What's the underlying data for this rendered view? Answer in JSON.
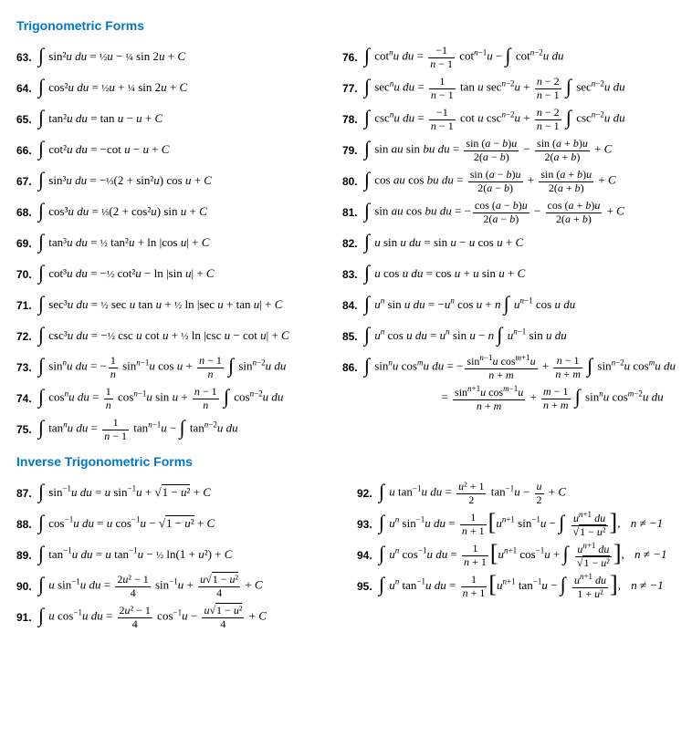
{
  "section1": {
    "title": "Trigonometric Forms",
    "color": "#0077c8",
    "left": [
      {
        "n": "63.",
        "f": "∫ sin²<i>u du</i> = <span class='sfrac'>½</span><i>u</i> − <span class='sfrac'>¼</span> sin 2<i>u</i> + <i>C</i>"
      },
      {
        "n": "64.",
        "f": "∫ cos²<i>u du</i> = <span class='sfrac'>½</span><i>u</i> + <span class='sfrac'>¼</span> sin 2<i>u</i> + <i>C</i>"
      },
      {
        "n": "65.",
        "f": "∫ tan²<i>u du</i> = tan <i>u</i> − <i>u</i> + <i>C</i>"
      },
      {
        "n": "66.",
        "f": "∫ cot²<i>u du</i> = −cot <i>u</i> − <i>u</i> + <i>C</i>"
      },
      {
        "n": "67.",
        "f": "∫ sin³<i>u du</i> = −<span class='sfrac'>⅓</span>(2 + sin²<i>u</i>) cos <i>u</i> + <i>C</i>"
      },
      {
        "n": "68.",
        "f": "∫ cos³<i>u du</i> = <span class='sfrac'>⅓</span>(2 + cos²<i>u</i>) sin <i>u</i> + <i>C</i>"
      },
      {
        "n": "69.",
        "f": "∫ tan³<i>u du</i> = <span class='sfrac'>½</span> tan²<i>u</i> + ln |cos <i>u</i>| + <i>C</i>"
      },
      {
        "n": "70.",
        "f": "∫ cot³<i>u du</i> = −<span class='sfrac'>½</span> cot²<i>u</i> − ln |sin <i>u</i>| + <i>C</i>"
      },
      {
        "n": "71.",
        "f": "∫ sec³<i>u du</i> = <span class='sfrac'>½</span> sec <i>u</i> tan <i>u</i> + <span class='sfrac'>½</span> ln |sec <i>u</i> + tan <i>u</i>| + <i>C</i>"
      },
      {
        "n": "72.",
        "f": "∫ csc³<i>u du</i> = −<span class='sfrac'>½</span> csc <i>u</i> cot <i>u</i> + <span class='sfrac'>½</span> ln |csc <i>u</i> − cot <i>u</i>| + <i>C</i>"
      },
      {
        "n": "73.",
        "f": "∫ sin<sup><i>n</i></sup><i>u du</i> = −<span class='frac'><span class='top'>1</span><span class='bot'><i>n</i></span></span> sin<sup><i>n</i>−1</sup><i>u</i> cos <i>u</i> + <span class='frac'><span class='top'><i>n</i> − 1</span><span class='bot'><i>n</i></span></span> ∫ sin<sup><i>n</i>−2</sup><i>u du</i>"
      },
      {
        "n": "74.",
        "f": "∫ cos<sup><i>n</i></sup><i>u du</i> = <span class='frac'><span class='top'>1</span><span class='bot'><i>n</i></span></span> cos<sup><i>n</i>−1</sup><i>u</i> sin <i>u</i> + <span class='frac'><span class='top'><i>n</i> − 1</span><span class='bot'><i>n</i></span></span> ∫ cos<sup><i>n</i>−2</sup><i>u du</i>"
      },
      {
        "n": "75.",
        "f": "∫ tan<sup><i>n</i></sup><i>u du</i> = <span class='frac'><span class='top'>1</span><span class='bot'><i>n</i> − 1</span></span> tan<sup><i>n</i>−1</sup><i>u</i> − ∫ tan<sup><i>n</i>−2</sup><i>u du</i>"
      }
    ],
    "right": [
      {
        "n": "76.",
        "f": "∫ cot<sup><i>n</i></sup><i>u du</i> = <span class='frac'><span class='top'>−1</span><span class='bot'><i>n</i> − 1</span></span> cot<sup><i>n</i>−1</sup><i>u</i> − ∫ cot<sup><i>n</i>−2</sup><i>u du</i>"
      },
      {
        "n": "77.",
        "f": "∫ sec<sup><i>n</i></sup><i>u du</i> = <span class='frac'><span class='top'>1</span><span class='bot'><i>n</i> − 1</span></span> tan <i>u</i> sec<sup><i>n</i>−2</sup><i>u</i> + <span class='frac'><span class='top'><i>n</i> − 2</span><span class='bot'><i>n</i> − 1</span></span> ∫ sec<sup><i>n</i>−2</sup><i>u du</i>"
      },
      {
        "n": "78.",
        "f": "∫ csc<sup><i>n</i></sup><i>u du</i> = <span class='frac'><span class='top'>−1</span><span class='bot'><i>n</i> − 1</span></span> cot <i>u</i> csc<sup><i>n</i>−2</sup><i>u</i> + <span class='frac'><span class='top'><i>n</i> − 2</span><span class='bot'><i>n</i> − 1</span></span> ∫ csc<sup><i>n</i>−2</sup><i>u du</i>"
      },
      {
        "n": "79.",
        "f": "∫ sin <i>au</i> sin <i>bu du</i> = <span class='frac'><span class='top'>sin (<i>a</i> − <i>b</i>)<i>u</i></span><span class='bot'>2(<i>a</i> − <i>b</i>)</span></span> − <span class='frac'><span class='top'>sin (<i>a</i> + <i>b</i>)<i>u</i></span><span class='bot'>2(<i>a</i> + <i>b</i>)</span></span> + <i>C</i>"
      },
      {
        "n": "80.",
        "f": "∫ cos <i>au</i> cos <i>bu du</i> = <span class='frac'><span class='top'>sin (<i>a</i> − <i>b</i>)<i>u</i></span><span class='bot'>2(<i>a</i> − <i>b</i>)</span></span> + <span class='frac'><span class='top'>sin (<i>a</i> + <i>b</i>)<i>u</i></span><span class='bot'>2(<i>a</i> + <i>b</i>)</span></span> + <i>C</i>"
      },
      {
        "n": "81.",
        "f": "∫ sin <i>au</i> cos <i>bu du</i> = −<span class='frac'><span class='top'>cos (<i>a</i> − <i>b</i>)<i>u</i></span><span class='bot'>2(<i>a</i> − <i>b</i>)</span></span> − <span class='frac'><span class='top'>cos (<i>a</i> + <i>b</i>)<i>u</i></span><span class='bot'>2(<i>a</i> + <i>b</i>)</span></span> + <i>C</i>"
      },
      {
        "n": "82.",
        "f": "∫ <i>u</i> sin <i>u du</i> = sin <i>u</i> − <i>u</i> cos <i>u</i> + <i>C</i>"
      },
      {
        "n": "83.",
        "f": "∫ <i>u</i> cos <i>u du</i> = cos <i>u</i> + <i>u</i> sin <i>u</i> + <i>C</i>"
      },
      {
        "n": "84.",
        "f": "∫ <i>u</i><sup><i>n</i></sup> sin <i>u du</i> = −<i>u</i><sup><i>n</i></sup> cos <i>u</i> + <i>n</i> ∫ <i>u</i><sup><i>n</i>−1</sup> cos <i>u du</i>"
      },
      {
        "n": "85.",
        "f": "∫ <i>u</i><sup><i>n</i></sup> cos <i>u du</i> = <i>u</i><sup><i>n</i></sup> sin <i>u</i> − <i>n</i> ∫ <i>u</i><sup><i>n</i>−1</sup> sin <i>u du</i>"
      },
      {
        "n": "86.",
        "f": "∫ sin<sup><i>n</i></sup><i>u</i> cos<sup><i>m</i></sup><i>u du</i> = −<span class='frac'><span class='top'>sin<sup><i>n</i>−1</sup><i>u</i> cos<sup><i>m</i>+1</sup><i>u</i></span><span class='bot'><i>n</i> + <i>m</i></span></span> + <span class='frac'><span class='top'><i>n</i> − 1</span><span class='bot'><i>n</i> + <i>m</i></span></span> ∫ sin<sup><i>n</i>−2</sup><i>u</i> cos<sup><i>m</i></sup><i>u du</i>"
      },
      {
        "n": "",
        "f": "&nbsp;&nbsp;&nbsp;&nbsp;&nbsp;&nbsp;&nbsp;&nbsp;&nbsp;&nbsp;&nbsp;&nbsp;&nbsp;&nbsp;&nbsp;&nbsp;&nbsp;&nbsp;&nbsp;&nbsp;&nbsp;&nbsp;&nbsp;&nbsp;&nbsp;&nbsp;= <span class='frac'><span class='top'>sin<sup><i>n</i>+1</sup><i>u</i> cos<sup><i>m</i>−1</sup><i>u</i></span><span class='bot'><i>n</i> + <i>m</i></span></span> + <span class='frac'><span class='top'><i>m</i> − 1</span><span class='bot'><i>n</i> + <i>m</i></span></span> ∫ sin<sup><i>n</i></sup><i>u</i> cos<sup><i>m</i>−2</sup><i>u du</i>"
      }
    ]
  },
  "section2": {
    "title": "Inverse Trigonometric Forms",
    "color": "#0077c8",
    "left": [
      {
        "n": "87.",
        "f": "∫ sin<sup>−1</sup><i>u du</i> = <i>u</i> sin<sup>−1</sup><i>u</i> + <span class='rad'></span><span class='sqrt'>1 − <i>u</i>²</span> + <i>C</i>"
      },
      {
        "n": "88.",
        "f": "∫ cos<sup>−1</sup><i>u du</i> = <i>u</i> cos<sup>−1</sup><i>u</i> − <span class='rad'></span><span class='sqrt'>1 − <i>u</i>²</span> + <i>C</i>"
      },
      {
        "n": "89.",
        "f": "∫ tan<sup>−1</sup><i>u du</i> = <i>u</i> tan<sup>−1</sup><i>u</i> − <span class='sfrac'>½</span> ln(1 + <i>u</i>²) + <i>C</i>"
      },
      {
        "n": "90.",
        "f": "∫ <i>u</i> sin<sup>−1</sup><i>u du</i> = <span class='frac'><span class='top'>2<i>u</i>² − 1</span><span class='bot'>4</span></span> sin<sup>−1</sup><i>u</i> + <span class='frac'><span class='top'><i>u</i><span class='rad'></span><span class='sqrt'>1 − <i>u</i>²</span></span><span class='bot'>4</span></span> + <i>C</i>"
      },
      {
        "n": "91.",
        "f": "∫ <i>u</i> cos<sup>−1</sup><i>u du</i> = <span class='frac'><span class='top'>2<i>u</i>² − 1</span><span class='bot'>4</span></span> cos<sup>−1</sup><i>u</i> − <span class='frac'><span class='top'><i>u</i><span class='rad'></span><span class='sqrt'>1 − <i>u</i>²</span></span><span class='bot'>4</span></span> + <i>C</i>"
      }
    ],
    "right": [
      {
        "n": "92.",
        "f": "∫ <i>u</i> tan<sup>−1</sup><i>u du</i> = <span class='frac'><span class='top'><i>u</i>² + 1</span><span class='bot'>2</span></span> tan<sup>−1</sup><i>u</i> − <span class='frac'><span class='top'><i>u</i></span><span class='bot'>2</span></span> + <i>C</i>"
      },
      {
        "n": "93.",
        "f": "∫ <i>u</i><sup><i>n</i></sup> sin<sup>−1</sup><i>u du</i> = <span class='frac'><span class='top'>1</span><span class='bot'><i>n</i> + 1</span></span><span class='brL'>[</span><i>u</i><sup><i>n</i>+1</sup> sin<sup>−1</sup><i>u</i> − ∫ <span class='frac'><span class='top'><i>u</i><sup><i>n</i>+1</sup> <i>du</i></span><span class='bot'><span class='rad'></span><span class='sqrt'>1 − <i>u</i>²</span></span></span><span class='brR'>]</span>, <span class='cond'><i>n</i> ≠ −1</span>"
      },
      {
        "n": "94.",
        "f": "∫ <i>u</i><sup><i>n</i></sup> cos<sup>−1</sup><i>u du</i> = <span class='frac'><span class='top'>1</span><span class='bot'><i>n</i> + 1</span></span><span class='brL'>[</span><i>u</i><sup><i>n</i>+1</sup> cos<sup>−1</sup><i>u</i> + ∫ <span class='frac'><span class='top'><i>u</i><sup><i>n</i>+1</sup> <i>du</i></span><span class='bot'><span class='rad'></span><span class='sqrt'>1 − <i>u</i>²</span></span></span><span class='brR'>]</span>, <span class='cond'><i>n</i> ≠ −1</span>"
      },
      {
        "n": "95.",
        "f": "∫ <i>u</i><sup><i>n</i></sup> tan<sup>−1</sup><i>u du</i> = <span class='frac'><span class='top'>1</span><span class='bot'><i>n</i> + 1</span></span><span class='brL'>[</span><i>u</i><sup><i>n</i>+1</sup> tan<sup>−1</sup><i>u</i> − ∫ <span class='frac'><span class='top'><i>u</i><sup><i>n</i>+1</sup> <i>du</i></span><span class='bot'>1 + <i>u</i>²</span></span><span class='brR'>]</span>, <span class='cond'><i>n</i> ≠ −1</span>"
      }
    ]
  }
}
